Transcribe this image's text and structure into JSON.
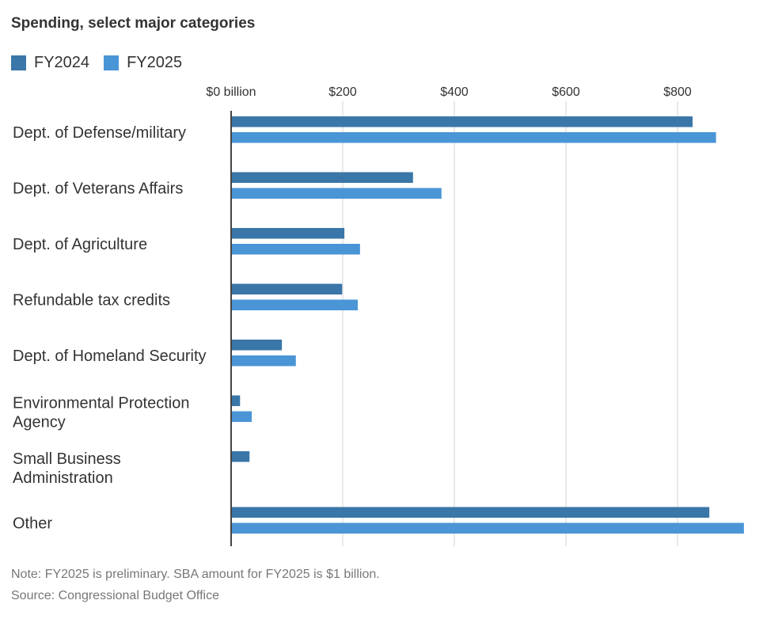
{
  "chart_data": {
    "type": "bar",
    "orientation": "horizontal",
    "title": "Spending, select major categories",
    "categories": [
      [
        "Dept. of Defense/military"
      ],
      [
        "Dept. of Veterans Affairs"
      ],
      [
        "Dept. of Agriculture"
      ],
      [
        "Refundable tax credits"
      ],
      [
        "Dept. of Homeland Security"
      ],
      [
        "Environmental Protection",
        "Agency"
      ],
      [
        "Small Business",
        "Administration"
      ],
      [
        "Other"
      ]
    ],
    "series": [
      {
        "name": "FY2024",
        "color": "#3a76a8",
        "values": [
          827,
          326,
          203,
          199,
          91,
          16,
          33,
          857
        ]
      },
      {
        "name": "FY2025",
        "color": "#4a95d6",
        "values": [
          869,
          377,
          231,
          227,
          116,
          37,
          1,
          919
        ]
      }
    ],
    "xlim": [
      0,
      920
    ],
    "ticks": [
      0,
      200,
      400,
      600,
      800
    ],
    "tick_labels": [
      "$0 billion",
      "$200",
      "$400",
      "$600",
      "$800"
    ],
    "grid": true,
    "legend": "top-left",
    "xlabel": "",
    "ylabel": ""
  },
  "notes": {
    "note": "Note: FY2025 is preliminary. SBA amount for FY2025 is $1 billion.",
    "source": "Source: Congressional Budget Office"
  }
}
